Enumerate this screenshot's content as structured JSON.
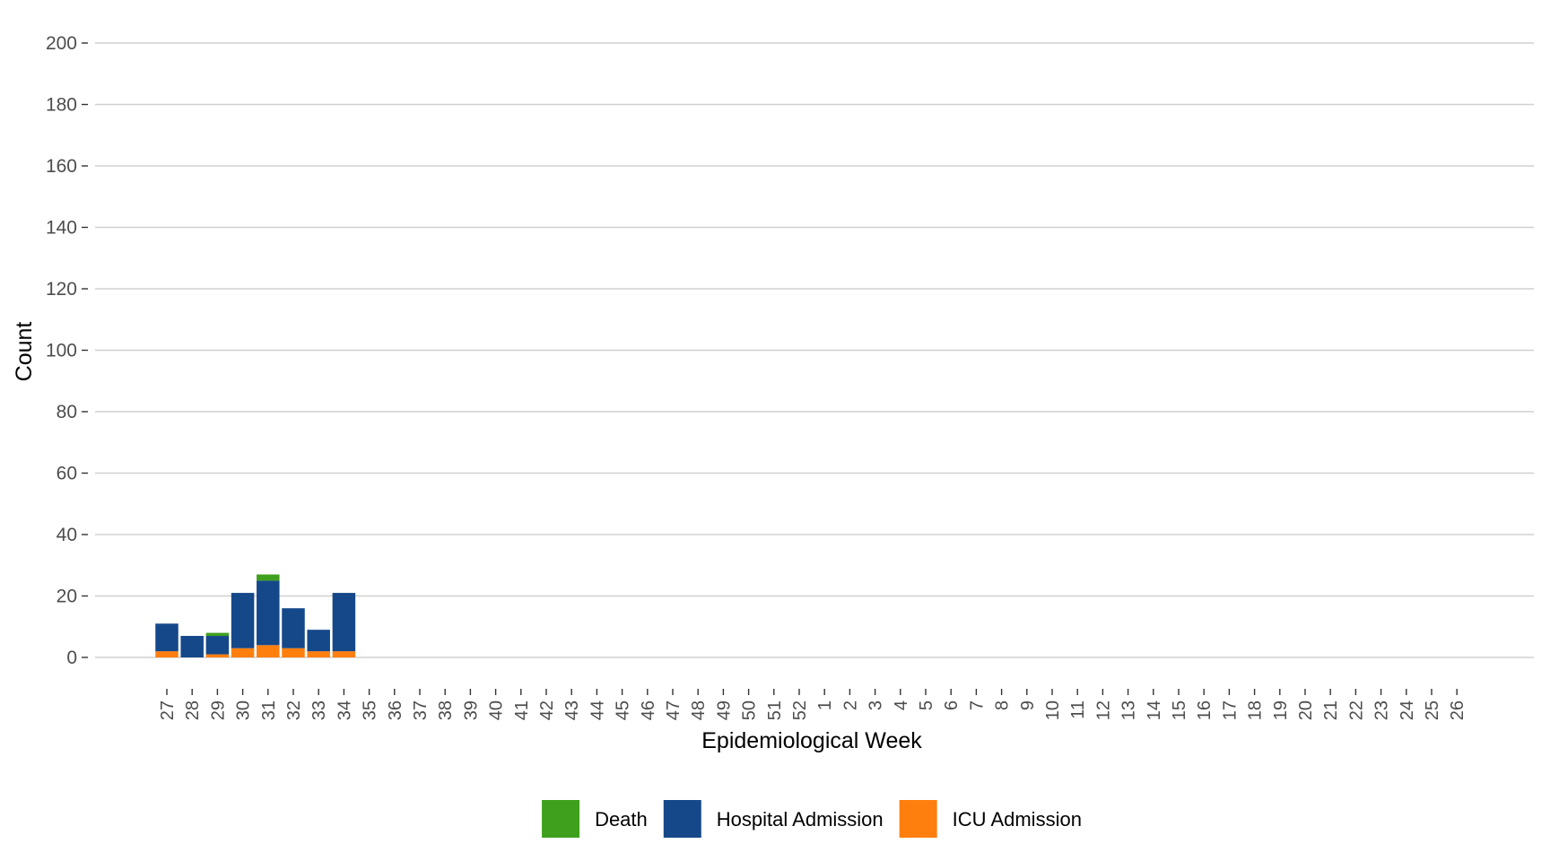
{
  "chart_data": {
    "type": "bar",
    "stacked": true,
    "xlabel": "Epidemiological Week",
    "ylabel": "Count",
    "ylim": [
      0,
      200
    ],
    "yticks": [
      0,
      20,
      40,
      60,
      80,
      100,
      120,
      140,
      160,
      180,
      200
    ],
    "grid": "horizontal",
    "legend_position": "bottom",
    "categories": [
      "27",
      "28",
      "29",
      "30",
      "31",
      "32",
      "33",
      "34",
      "35",
      "36",
      "37",
      "38",
      "39",
      "40",
      "41",
      "42",
      "43",
      "44",
      "45",
      "46",
      "47",
      "48",
      "49",
      "50",
      "51",
      "52",
      "1",
      "2",
      "3",
      "4",
      "5",
      "6",
      "7",
      "8",
      "9",
      "10",
      "11",
      "12",
      "13",
      "14",
      "15",
      "16",
      "17",
      "18",
      "19",
      "20",
      "21",
      "22",
      "23",
      "24",
      "25",
      "26"
    ],
    "series": [
      {
        "name": "ICU Admission",
        "color": "#ff7f0e",
        "values": [
          2,
          0,
          1,
          3,
          4,
          3,
          2,
          2,
          0,
          0,
          0,
          0,
          0,
          0,
          0,
          0,
          0,
          0,
          0,
          0,
          0,
          0,
          0,
          0,
          0,
          0,
          0,
          0,
          0,
          0,
          0,
          0,
          0,
          0,
          0,
          0,
          0,
          0,
          0,
          0,
          0,
          0,
          0,
          0,
          0,
          0,
          0,
          0,
          0,
          0,
          0,
          0
        ]
      },
      {
        "name": "Hospital Admission",
        "color": "#154889",
        "values": [
          9,
          7,
          6,
          18,
          21,
          13,
          7,
          19,
          0,
          0,
          0,
          0,
          0,
          0,
          0,
          0,
          0,
          0,
          0,
          0,
          0,
          0,
          0,
          0,
          0,
          0,
          0,
          0,
          0,
          0,
          0,
          0,
          0,
          0,
          0,
          0,
          0,
          0,
          0,
          0,
          0,
          0,
          0,
          0,
          0,
          0,
          0,
          0,
          0,
          0,
          0,
          0
        ]
      },
      {
        "name": "Death",
        "color": "#3fa01d",
        "values": [
          0,
          0,
          1,
          0,
          2,
          0,
          0,
          0,
          0,
          0,
          0,
          0,
          0,
          0,
          0,
          0,
          0,
          0,
          0,
          0,
          0,
          0,
          0,
          0,
          0,
          0,
          0,
          0,
          0,
          0,
          0,
          0,
          0,
          0,
          0,
          0,
          0,
          0,
          0,
          0,
          0,
          0,
          0,
          0,
          0,
          0,
          0,
          0,
          0,
          0,
          0,
          0
        ]
      }
    ],
    "legend_order": [
      "Death",
      "Hospital Admission",
      "ICU Admission"
    ]
  }
}
